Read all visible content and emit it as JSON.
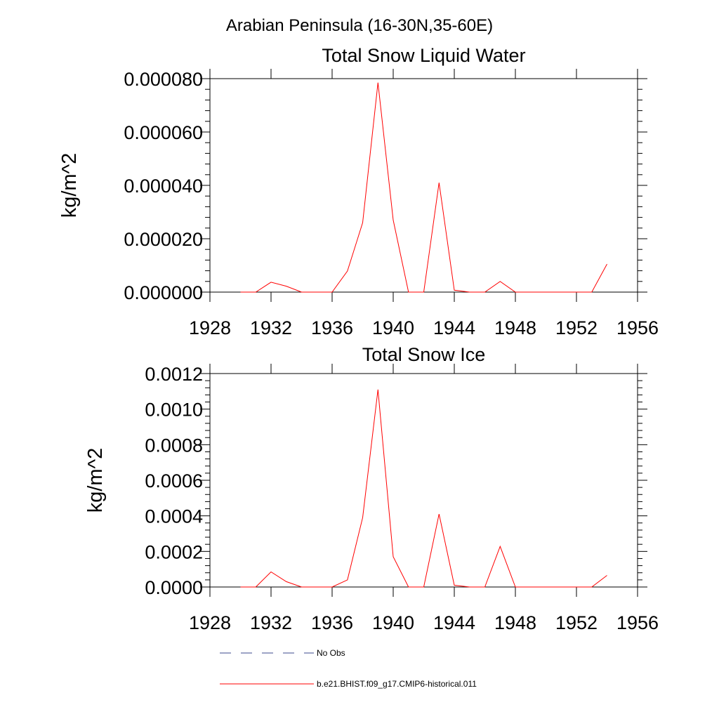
{
  "figure": {
    "title": "Arabian Peninsula (16-30N,35-60E)"
  },
  "colors": {
    "obs": "#3b4a8c",
    "model": "#ff0000",
    "axis": "#000000"
  },
  "legend": {
    "placement": "bottom",
    "entries": [
      {
        "label": "No Obs",
        "style": "dashed",
        "color": "#3b4a8c"
      },
      {
        "label": "b.e21.BHIST.f09_g17.CMIP6-historical.011",
        "style": "solid",
        "color": "#ff0000"
      }
    ]
  },
  "chart_data": [
    {
      "type": "line",
      "title": "Total Snow Liquid Water",
      "xlabel": "",
      "ylabel": "kg/m^2",
      "xlim": [
        1928,
        1956
      ],
      "ylim": [
        0,
        8e-05
      ],
      "xticks": [
        1928,
        1932,
        1936,
        1940,
        1944,
        1948,
        1952,
        1956
      ],
      "xtick_labels": [
        "1928",
        "1932",
        "1936",
        "1940",
        "1944",
        "1948",
        "1952",
        "1956"
      ],
      "yticks": [
        0,
        2e-05,
        4e-05,
        6e-05,
        8e-05
      ],
      "ytick_labels": [
        "0.000000",
        "0.000020",
        "0.000040",
        "0.000060",
        "0.000080"
      ],
      "grid": false,
      "series": [
        {
          "name": "b.e21.BHIST.f09_g17.CMIP6-historical.011",
          "color": "#ff0000",
          "x": [
            1930,
            1931,
            1932,
            1933,
            1934,
            1935,
            1936,
            1937,
            1938,
            1939,
            1940,
            1941,
            1942,
            1943,
            1944,
            1945,
            1946,
            1947,
            1948,
            1949,
            1950,
            1951,
            1952,
            1953,
            1954
          ],
          "y": [
            0.0,
            0.0,
            3.7e-06,
            2.2e-06,
            0.0,
            0.0,
            0.0,
            7.9e-06,
            2.6e-05,
            7.85e-05,
            2.7e-05,
            0.0,
            0.0,
            4.1e-05,
            7e-07,
            0.0,
            0.0,
            4e-06,
            0.0,
            0.0,
            0.0,
            0.0,
            0.0,
            0.0,
            1.05e-05
          ]
        }
      ]
    },
    {
      "type": "line",
      "title": "Total Snow Ice",
      "xlabel": "",
      "ylabel": "kg/m^2",
      "xlim": [
        1928,
        1956
      ],
      "ylim": [
        0,
        0.0012
      ],
      "xticks": [
        1928,
        1932,
        1936,
        1940,
        1944,
        1948,
        1952,
        1956
      ],
      "xtick_labels": [
        "1928",
        "1932",
        "1936",
        "1940",
        "1944",
        "1948",
        "1952",
        "1956"
      ],
      "yticks": [
        0,
        0.0002,
        0.0004,
        0.0006,
        0.0008,
        0.001,
        0.0012
      ],
      "ytick_labels": [
        "0.0000",
        "0.0002",
        "0.0004",
        "0.0006",
        "0.0008",
        "0.0010",
        "0.0012"
      ],
      "grid": false,
      "series": [
        {
          "name": "b.e21.BHIST.f09_g17.CMIP6-historical.011",
          "color": "#ff0000",
          "x": [
            1930,
            1931,
            1932,
            1933,
            1934,
            1935,
            1936,
            1937,
            1938,
            1939,
            1940,
            1941,
            1942,
            1943,
            1944,
            1945,
            1946,
            1947,
            1948,
            1949,
            1950,
            1951,
            1952,
            1953,
            1954
          ],
          "y": [
            0.0,
            0.0,
            8.5e-05,
            3e-05,
            0.0,
            0.0,
            0.0,
            4e-05,
            0.00039,
            0.00111,
            0.00017,
            0.0,
            0.0,
            0.00041,
            1e-05,
            0.0,
            0.0,
            0.000228,
            0.0,
            0.0,
            0.0,
            0.0,
            0.0,
            0.0,
            6.5e-05
          ]
        }
      ]
    }
  ]
}
